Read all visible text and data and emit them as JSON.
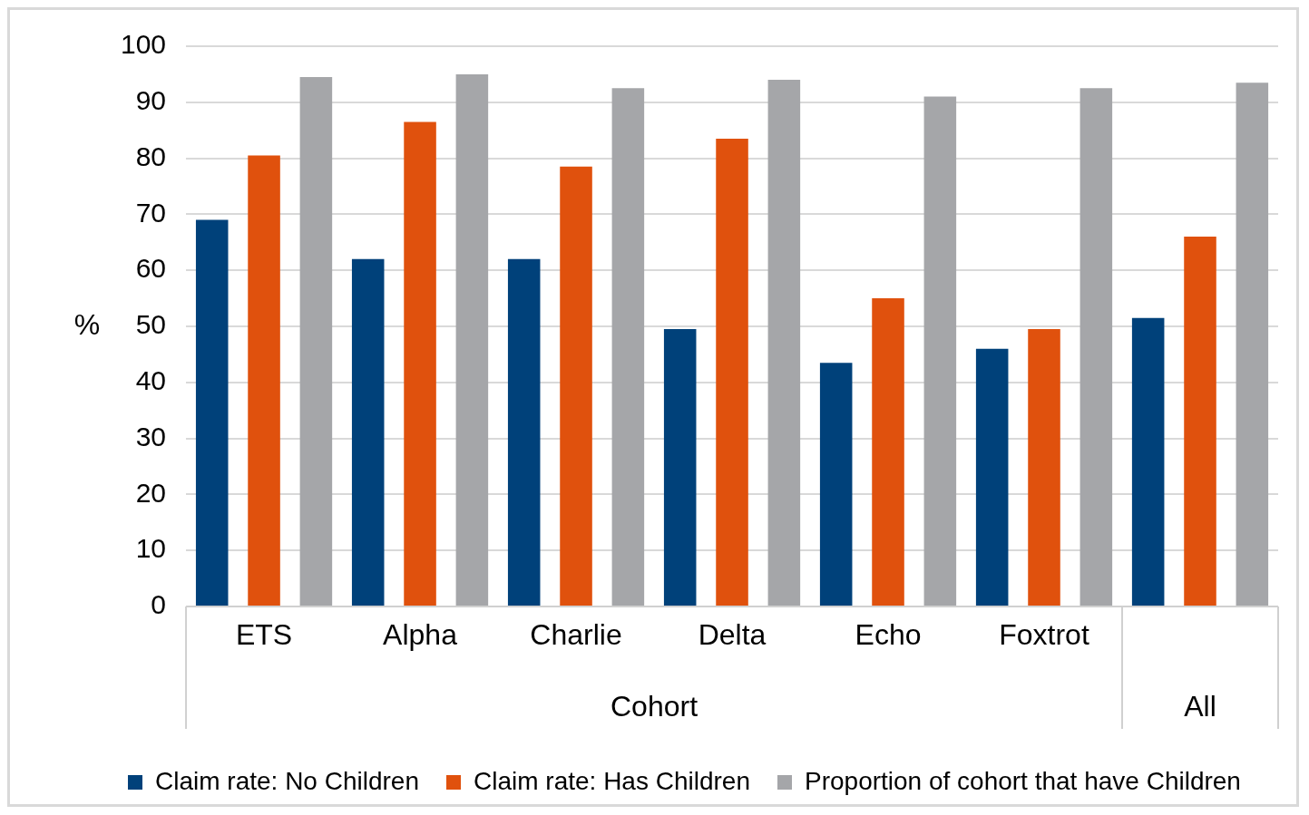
{
  "chart_data": {
    "type": "bar",
    "ylabel": "%",
    "categories": [
      "ETS",
      "Alpha",
      "Charlie",
      "Delta",
      "Echo",
      "Foxtrot",
      null
    ],
    "series": [
      {
        "name": "Claim rate: No Children",
        "color": "#00417a",
        "values": [
          69,
          62,
          62,
          49.5,
          43.5,
          46,
          51.5
        ]
      },
      {
        "name": "Claim rate: Has Children",
        "color": "#e0510d",
        "values": [
          80.5,
          86.5,
          78.5,
          83.5,
          55,
          49.5,
          66
        ]
      },
      {
        "name": "Proportion of cohort that have Children",
        "color": "#a5a6a9",
        "values": [
          94.5,
          95,
          92.5,
          94,
          91,
          92.5,
          93.5
        ]
      }
    ],
    "ylim": [
      0,
      100
    ],
    "yticks": [
      0,
      10,
      20,
      30,
      40,
      50,
      60,
      70,
      80,
      90,
      100
    ],
    "annotations": [
      "Cohort",
      "All"
    ],
    "grid": "y",
    "legend": "bottom"
  }
}
